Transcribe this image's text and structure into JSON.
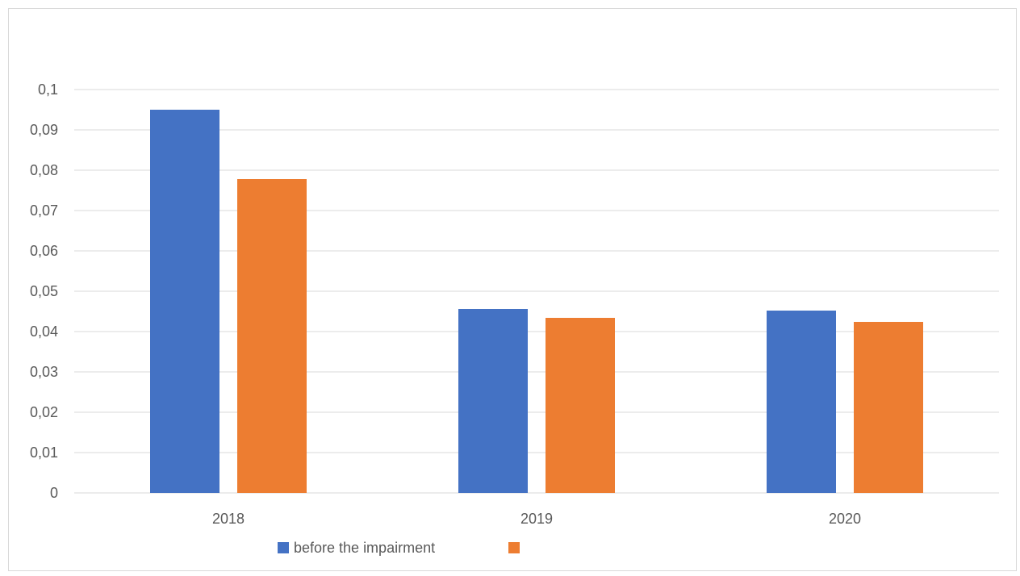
{
  "chart_data": {
    "type": "bar",
    "categories": [
      "2018",
      "2019",
      "2020"
    ],
    "series": [
      {
        "name": "before the impairment",
        "color": "#4472C4",
        "values": [
          0.095,
          0.0456,
          0.0452
        ]
      },
      {
        "name": "",
        "color": "#ED7D31",
        "values": [
          0.0778,
          0.0434,
          0.0424
        ]
      }
    ],
    "ylim": [
      0,
      0.1
    ],
    "yticks": [
      0,
      0.01,
      0.02,
      0.03,
      0.04,
      0.05,
      0.06,
      0.07,
      0.08,
      0.09,
      0.1
    ],
    "ytick_labels": [
      "0",
      "0,01",
      "0,02",
      "0,03",
      "0,04",
      "0,05",
      "0,06",
      "0,07",
      "0,08",
      "0,09",
      "0,1"
    ],
    "grid": true,
    "legend_position": "bottom",
    "title": "",
    "xlabel": "",
    "ylabel": ""
  }
}
